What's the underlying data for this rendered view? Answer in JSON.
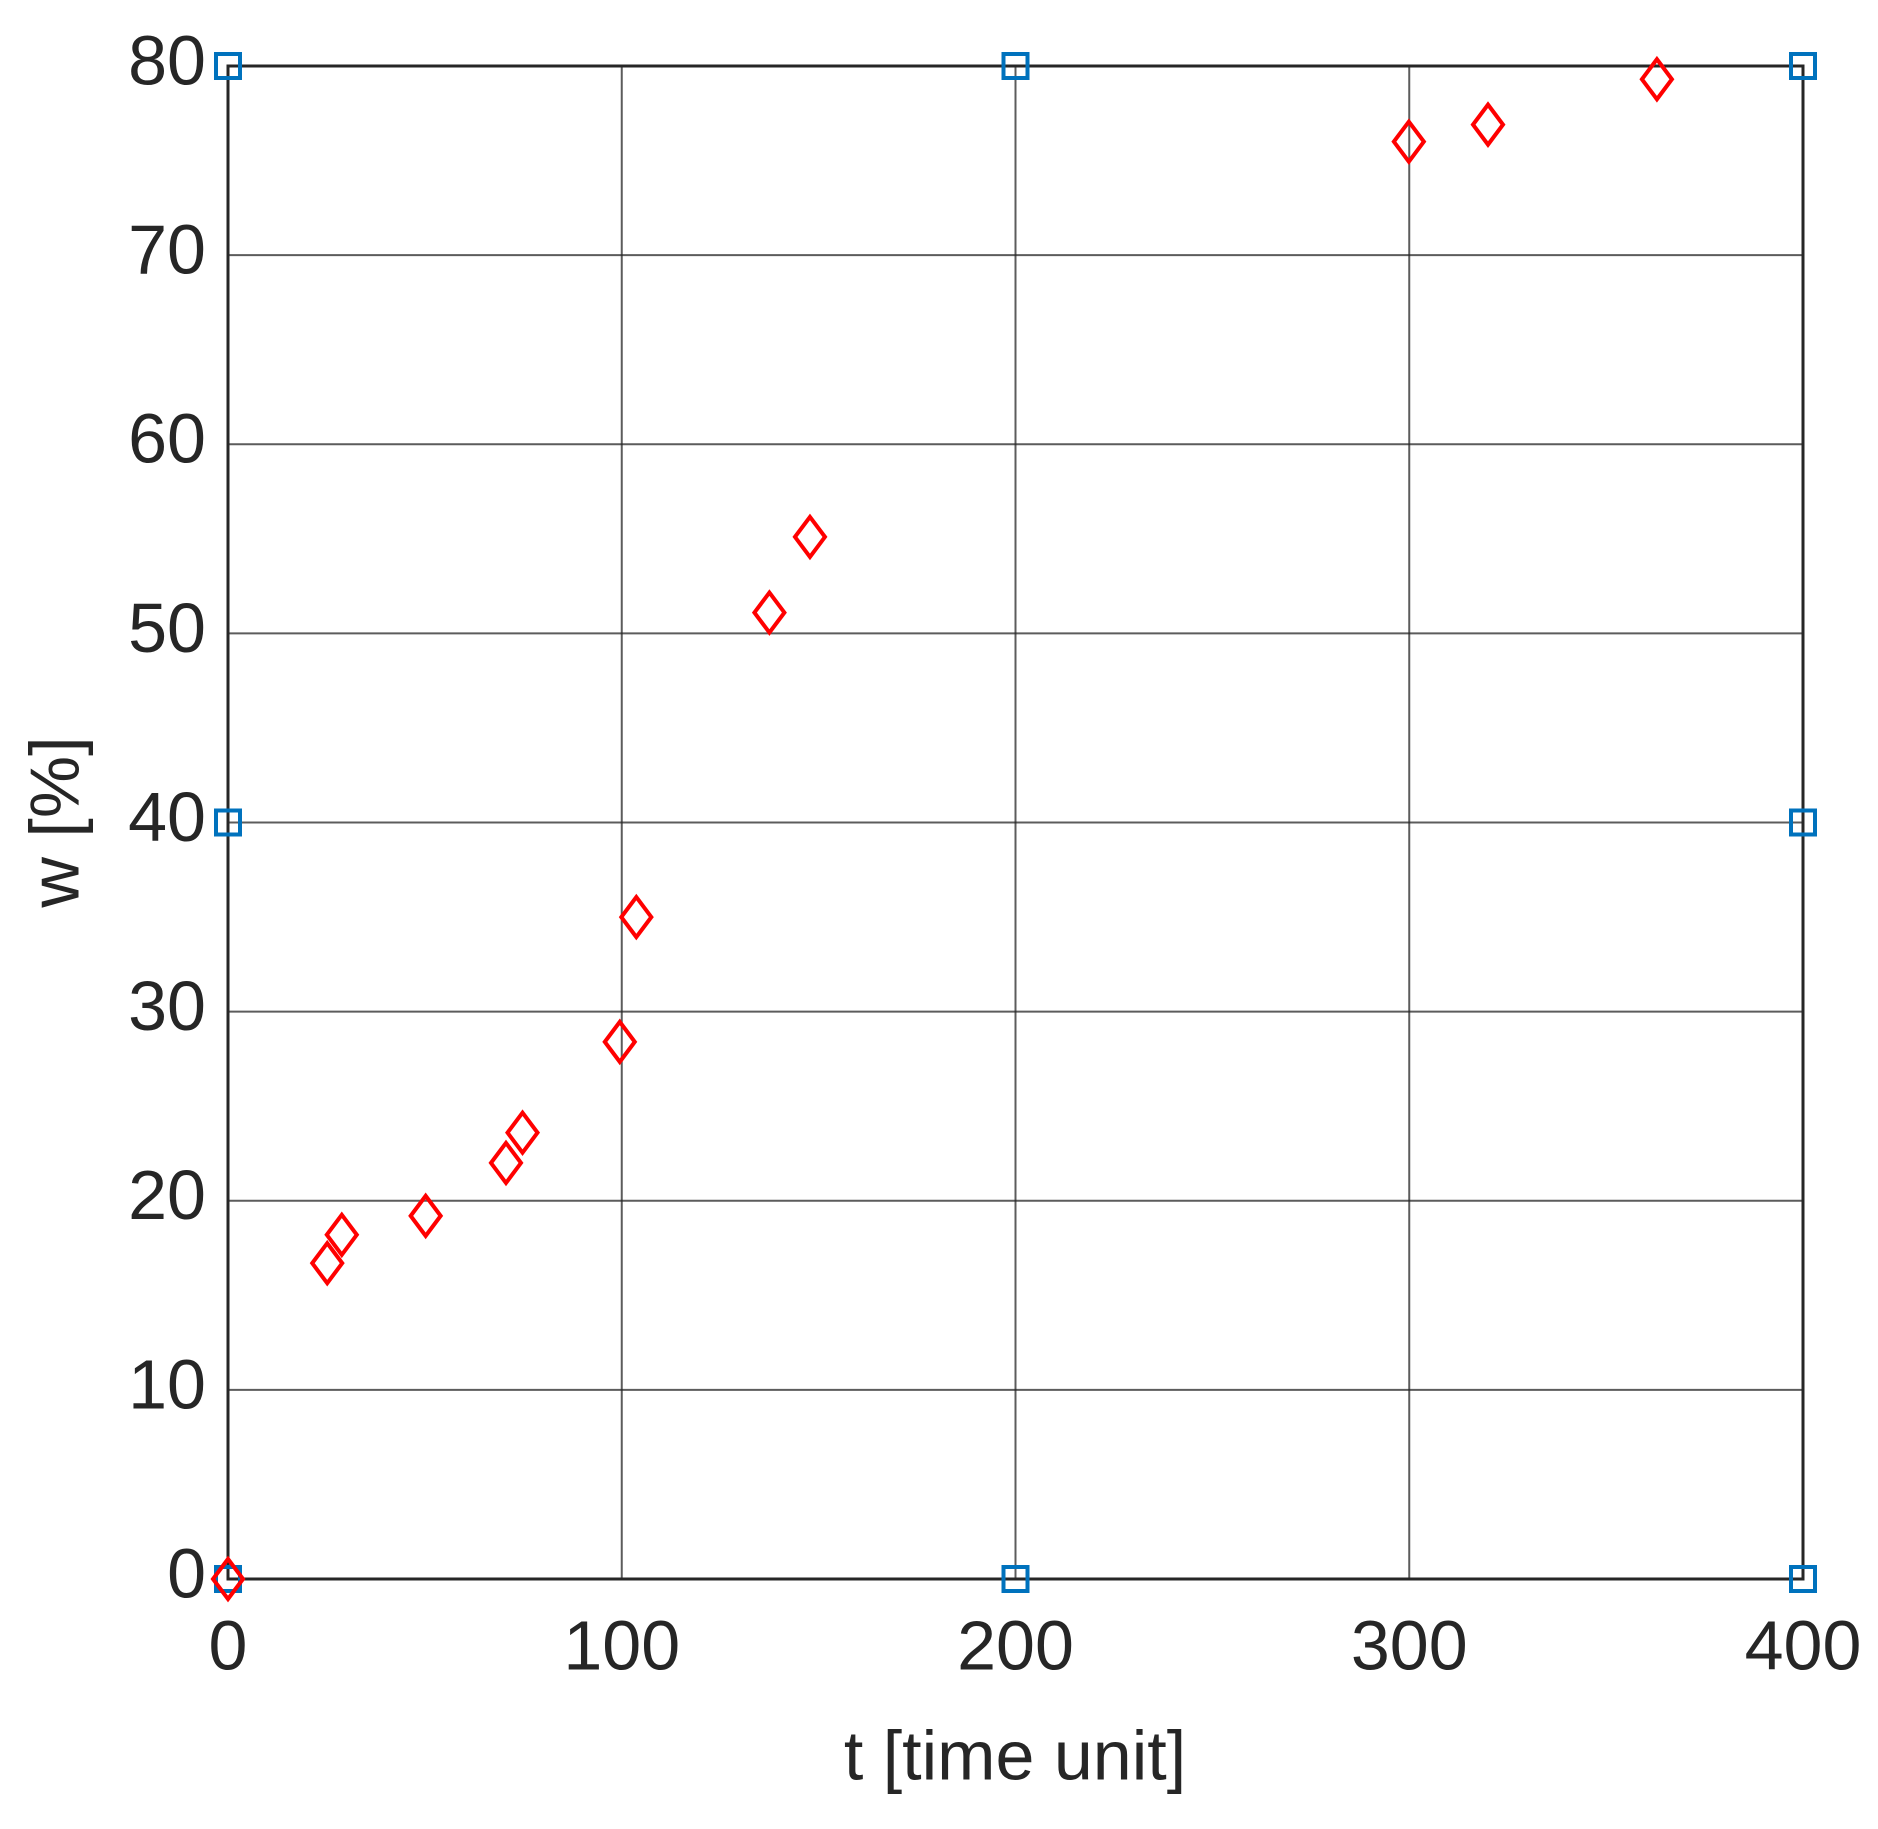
{
  "chart_data": {
    "type": "scatter",
    "x_label": "t [time unit]",
    "y_label": "w [%]",
    "xlim": [
      0,
      400
    ],
    "ylim": [
      0,
      80
    ],
    "xticks": [
      0,
      100,
      200,
      300,
      400
    ],
    "yticks": [
      0,
      10,
      20,
      30,
      40,
      50,
      60,
      70,
      80
    ],
    "grid": true,
    "series": [
      {
        "color": "#0072bd",
        "marker": "square",
        "x": [
          0,
          0,
          0,
          200,
          200,
          400,
          400,
          400
        ],
        "values": [
          0,
          40,
          80,
          0,
          80,
          0,
          40,
          80
        ]
      },
      {
        "color": "#ff0000",
        "marker": "diamond",
        "x": [
          0,
          25.2,
          28.9,
          50.2,
          70.6,
          74.8,
          99.5,
          103.7,
          137.5,
          147.8,
          299.9,
          320,
          362.9
        ],
        "values": [
          0,
          16.7,
          18.2,
          19.2,
          22.0,
          23.6,
          28.4,
          35.0,
          51.1,
          55.1,
          76.0,
          76.9,
          79.3
        ]
      }
    ]
  }
}
